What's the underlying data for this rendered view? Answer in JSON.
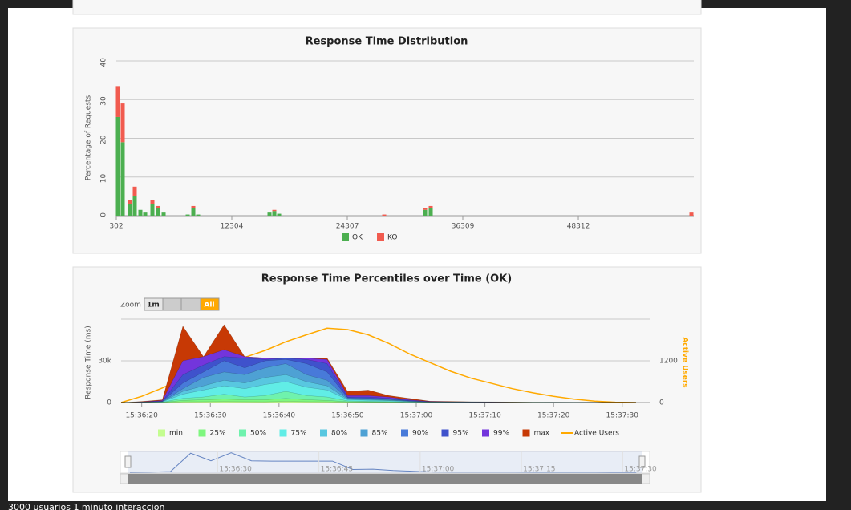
{
  "chart_data": [
    {
      "type": "bar",
      "stacked": true,
      "title": "Response Time Distribution",
      "y_label": "Percentage of Requests",
      "x": [
        469,
        969,
        1719,
        2219,
        2803,
        3303,
        4053,
        4636,
        5220,
        7720,
        8304,
        8804,
        16222,
        16722,
        17222,
        28141,
        32392,
        32975,
        60063
      ],
      "series": [
        {
          "name": "OK",
          "color": "#4caf50",
          "values": [
            25.5,
            19,
            3,
            5,
            1.5,
            0.8,
            3,
            2,
            0.8,
            0.3,
            2,
            0.3,
            0.8,
            1.2,
            0.5,
            0,
            1.5,
            2,
            0
          ]
        },
        {
          "name": "KO",
          "color": "#f15b4f",
          "values": [
            8,
            10,
            1,
            2.5,
            0,
            0,
            1,
            0.5,
            0,
            0,
            0.5,
            0,
            0,
            0.3,
            0,
            0.3,
            0.5,
            0.5,
            0.8
          ]
        }
      ],
      "xlim": [
        302,
        60312
      ],
      "xticks": [
        302,
        12304,
        24307,
        36309,
        48312
      ],
      "ylim": [
        0,
        40
      ],
      "yticks": [
        0,
        10,
        20,
        30,
        40
      ],
      "grid": true
    },
    {
      "type": "area",
      "title": "Response Time Percentiles over Time (OK)",
      "y_label": "Response Time (ms)",
      "y2_label": "Active Users",
      "x": [
        "15:36:17",
        "15:36:20",
        "15:36:23",
        "15:36:26",
        "15:36:29",
        "15:36:32",
        "15:36:35",
        "15:36:38",
        "15:36:41",
        "15:36:44",
        "15:36:47",
        "15:36:50",
        "15:36:53",
        "15:36:56",
        "15:36:59",
        "15:37:02",
        "15:37:05",
        "15:37:08",
        "15:37:11",
        "15:37:14",
        "15:37:17",
        "15:37:20",
        "15:37:23",
        "15:37:26",
        "15:37:29",
        "15:37:32"
      ],
      "series": [
        {
          "name": "min",
          "color": "#c4fd90",
          "values": [
            0,
            50,
            100,
            500,
            600,
            700,
            600,
            500,
            800,
            600,
            500,
            300,
            200,
            150,
            100,
            50,
            40,
            30,
            25,
            20,
            15,
            10,
            8,
            5,
            3,
            0
          ]
        },
        {
          "name": "25%",
          "color": "#7ff77f",
          "values": [
            0,
            80,
            200,
            1500,
            2000,
            2500,
            2000,
            2000,
            3000,
            2000,
            1500,
            600,
            500,
            400,
            200,
            100,
            80,
            60,
            50,
            40,
            30,
            20,
            15,
            10,
            5,
            0
          ]
        },
        {
          "name": "50%",
          "color": "#6ff2ad",
          "values": [
            0,
            100,
            300,
            3000,
            4000,
            6000,
            4000,
            5000,
            8000,
            5000,
            4000,
            1200,
            900,
            700,
            300,
            150,
            120,
            100,
            80,
            60,
            50,
            40,
            30,
            20,
            10,
            0
          ]
        },
        {
          "name": "75%",
          "color": "#61ede6",
          "values": [
            0,
            150,
            500,
            6000,
            9000,
            12000,
            10000,
            13000,
            15000,
            11000,
            9000,
            2000,
            1600,
            1300,
            600,
            250,
            200,
            150,
            120,
            100,
            80,
            60,
            40,
            30,
            15,
            0
          ]
        },
        {
          "name": "80%",
          "color": "#58c7e0",
          "values": [
            0,
            200,
            600,
            8000,
            12000,
            16000,
            14000,
            18000,
            20000,
            15000,
            12000,
            2500,
            2000,
            1600,
            800,
            300,
            250,
            200,
            150,
            120,
            100,
            70,
            50,
            40,
            20,
            0
          ]
        },
        {
          "name": "85%",
          "color": "#4ea1d4",
          "values": [
            0,
            250,
            700,
            10000,
            18000,
            22000,
            20000,
            25000,
            28000,
            20000,
            16000,
            3000,
            2500,
            2000,
            1000,
            400,
            300,
            250,
            200,
            150,
            120,
            80,
            60,
            50,
            20,
            0
          ]
        },
        {
          "name": "90%",
          "color": "#487ad9",
          "values": [
            0,
            300,
            800,
            14000,
            22000,
            30000,
            25000,
            30000,
            31000,
            28000,
            22000,
            3500,
            3000,
            2500,
            1200,
            500,
            400,
            300,
            250,
            200,
            150,
            100,
            80,
            60,
            30,
            0
          ]
        },
        {
          "name": "95%",
          "color": "#3f52cc",
          "values": [
            0,
            400,
            1000,
            20000,
            27000,
            33000,
            32000,
            31000,
            32000,
            31000,
            28000,
            4000,
            4000,
            3000,
            1500,
            600,
            500,
            400,
            300,
            250,
            200,
            150,
            100,
            80,
            40,
            0
          ]
        },
        {
          "name": "99%",
          "color": "#7335dc",
          "values": [
            0,
            500,
            1500,
            30000,
            33000,
            38000,
            33000,
            32000,
            32000,
            32000,
            31000,
            5000,
            5000,
            4000,
            2000,
            800,
            600,
            500,
            400,
            300,
            250,
            200,
            150,
            100,
            50,
            0
          ]
        },
        {
          "name": "max",
          "color": "#c73905",
          "values": [
            0,
            800,
            2000,
            55000,
            33000,
            56000,
            33000,
            32000,
            32000,
            32000,
            32000,
            8000,
            9000,
            5000,
            3000,
            1000,
            800,
            600,
            500,
            400,
            300,
            300,
            200,
            200,
            100,
            0
          ]
        },
        {
          "name": "Active Users",
          "color": "#ffa900",
          "axis": "y2",
          "type": "line",
          "values": [
            0,
            180,
            420,
            700,
            900,
            1100,
            1300,
            1500,
            1750,
            1950,
            2140,
            2100,
            1950,
            1700,
            1400,
            1150,
            900,
            700,
            550,
            400,
            280,
            180,
            100,
            40,
            10,
            0
          ]
        }
      ],
      "xlim": [
        "15:36:17",
        "15:37:34"
      ],
      "xticks": [
        "15:36:20",
        "15:36:30",
        "15:36:40",
        "15:36:50",
        "15:37:00",
        "15:37:10",
        "15:37:20",
        "15:37:30"
      ],
      "ylim": [
        0,
        60000
      ],
      "yticks": [
        0,
        {
          "value": 30000,
          "label": "30k"
        }
      ],
      "y2lim": [
        0,
        2400
      ],
      "y2ticks": [
        0,
        1200
      ],
      "grid": true,
      "navigator_xticks": [
        "15:36:30",
        "15:36:45",
        "15:37:00",
        "15:37:15",
        "15:37:30"
      ]
    }
  ],
  "zoom": {
    "label": "Zoom",
    "buttons": [
      "1m",
      "All"
    ]
  },
  "caption": "3000 usuarios 1 minuto interaccion"
}
